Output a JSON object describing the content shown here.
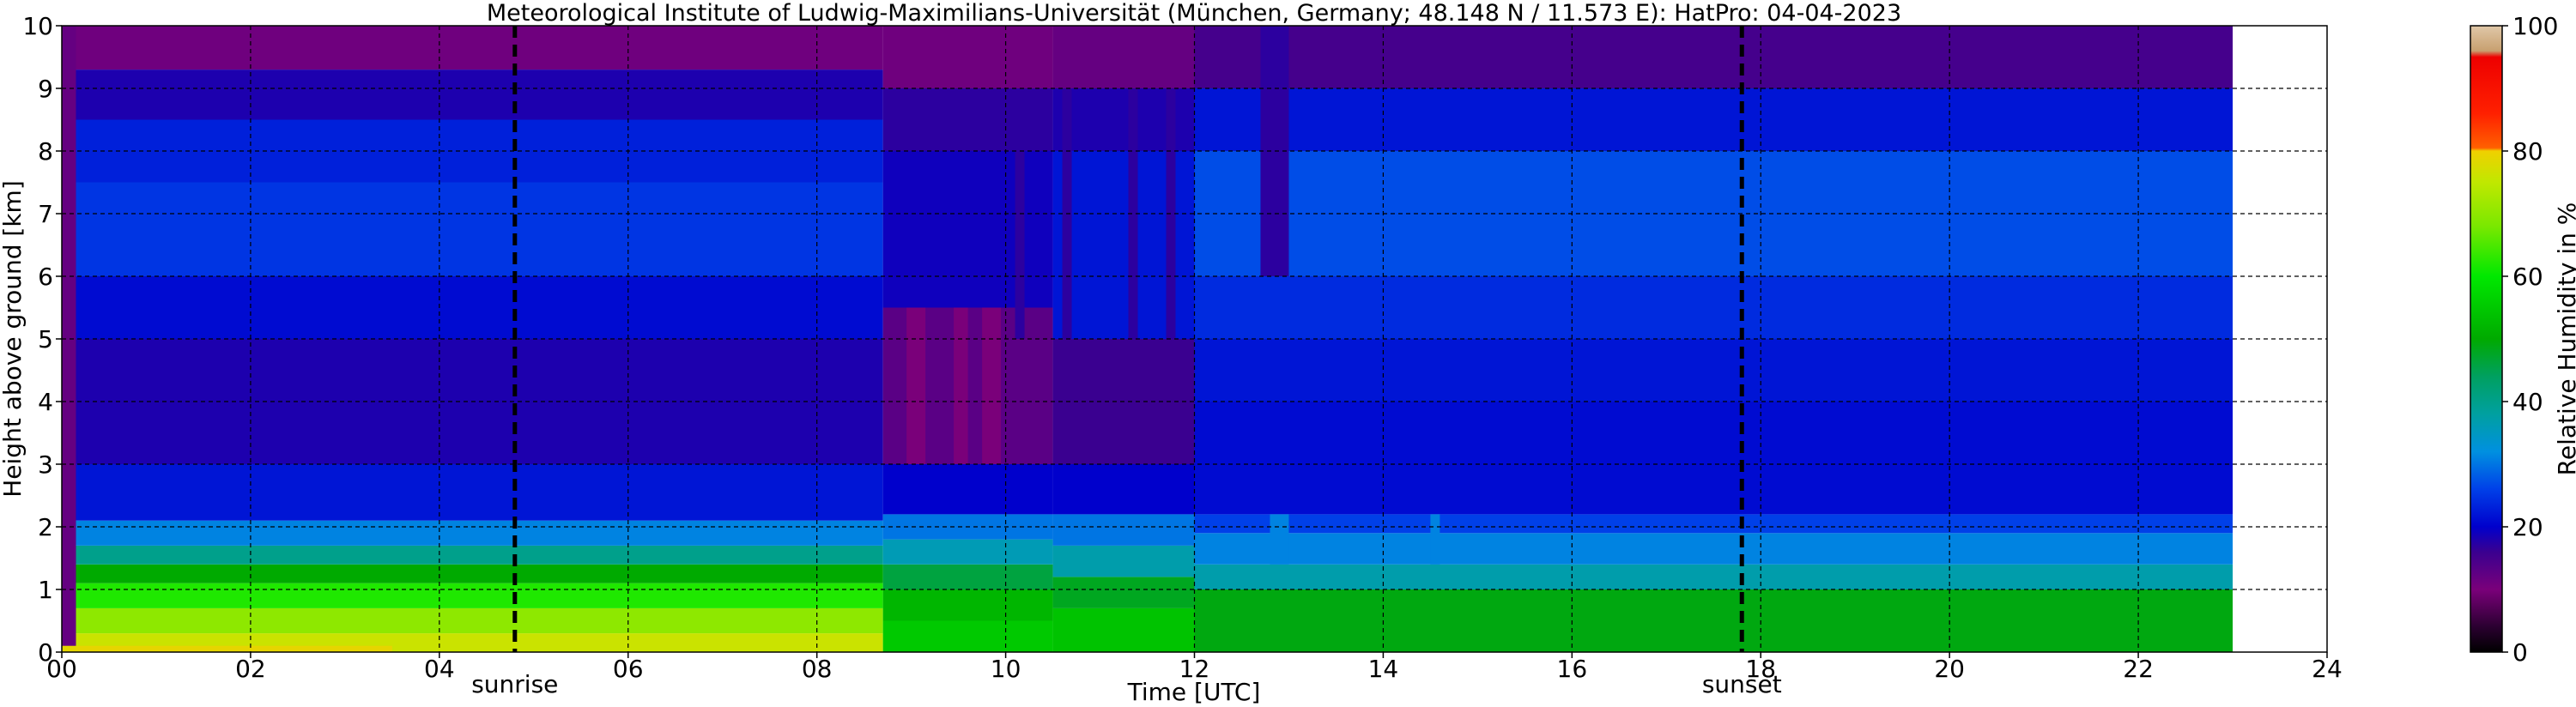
{
  "chart_data": {
    "type": "heatmap",
    "title": "Meteorological Institute of Ludwig-Maximilians-Universität (München, Germany; 48.148 N / 11.573 E):    HatPro: 04-04-2023",
    "xlabel": "Time [UTC]",
    "ylabel": "Height above ground [km]",
    "xlim": [
      0,
      24
    ],
    "ylim": [
      0,
      10
    ],
    "data_end_time": 23,
    "x_ticks": [
      "00",
      "02",
      "04",
      "06",
      "08",
      "10",
      "12",
      "14",
      "16",
      "18",
      "20",
      "22",
      "24"
    ],
    "y_ticks": [
      "0",
      "1",
      "2",
      "3",
      "4",
      "5",
      "6",
      "7",
      "8",
      "9",
      "10"
    ],
    "grid": true,
    "annotations": [
      {
        "label": "sunrise",
        "time": 4.8
      },
      {
        "label": "sunset",
        "time": 17.8
      }
    ],
    "colorbar": {
      "label": "Relative Humidity in %",
      "ticks": [
        "0",
        "20",
        "40",
        "60",
        "80",
        "100"
      ],
      "range": [
        0,
        100
      ],
      "stops": [
        {
          "value": 0,
          "color": "#000000"
        },
        {
          "value": 4,
          "color": "#2a0030"
        },
        {
          "value": 10,
          "color": "#7a007a"
        },
        {
          "value": 16,
          "color": "#3a0090"
        },
        {
          "value": 20,
          "color": "#0000cc"
        },
        {
          "value": 26,
          "color": "#0040e8"
        },
        {
          "value": 32,
          "color": "#0090e0"
        },
        {
          "value": 38,
          "color": "#00a0a0"
        },
        {
          "value": 44,
          "color": "#00a060"
        },
        {
          "value": 50,
          "color": "#00aa00"
        },
        {
          "value": 60,
          "color": "#00e800"
        },
        {
          "value": 68,
          "color": "#7ae800"
        },
        {
          "value": 75,
          "color": "#c0e800"
        },
        {
          "value": 80,
          "color": "#f0d000"
        },
        {
          "value": 80.5,
          "color": "#ff6000"
        },
        {
          "value": 86,
          "color": "#ff2000"
        },
        {
          "value": 95,
          "color": "#ee0000"
        },
        {
          "value": 96,
          "color": "#c8a070"
        },
        {
          "value": 100,
          "color": "#e0c8a8"
        }
      ]
    },
    "time_segments": [
      {
        "start": 0,
        "end": 8.7,
        "rows": [
          {
            "z0": 0,
            "z1": 0.3,
            "rh": 76
          },
          {
            "z0": 0.3,
            "z1": 0.7,
            "rh": 70
          },
          {
            "z0": 0.7,
            "z1": 1.1,
            "rh": 62
          },
          {
            "z0": 1.1,
            "z1": 1.4,
            "rh": 50
          },
          {
            "z0": 1.4,
            "z1": 1.7,
            "rh": 40
          },
          {
            "z0": 1.7,
            "z1": 2.1,
            "rh": 31
          },
          {
            "z0": 2.1,
            "z1": 3.0,
            "rh": 22
          },
          {
            "z0": 3.0,
            "z1": 5.0,
            "rh": 18
          },
          {
            "z0": 5.0,
            "z1": 6.0,
            "rh": 21
          },
          {
            "z0": 6.0,
            "z1": 7.5,
            "rh": 25
          },
          {
            "z0": 7.5,
            "z1": 8.5,
            "rh": 23
          },
          {
            "z0": 8.5,
            "z1": 9.3,
            "rh": 18
          },
          {
            "z0": 9.3,
            "z1": 10,
            "rh": 11
          }
        ]
      },
      {
        "start": 8.7,
        "end": 10.5,
        "rows": [
          {
            "z0": 0,
            "z1": 0.5,
            "rh": 55
          },
          {
            "z0": 0.5,
            "z1": 1.0,
            "rh": 52
          },
          {
            "z0": 1.0,
            "z1": 1.4,
            "rh": 46
          },
          {
            "z0": 1.4,
            "z1": 1.8,
            "rh": 36
          },
          {
            "z0": 1.8,
            "z1": 2.2,
            "rh": 30
          },
          {
            "z0": 2.2,
            "z1": 3.0,
            "rh": 20
          },
          {
            "z0": 3.0,
            "z1": 5.5,
            "rh": 13
          },
          {
            "z0": 5.5,
            "z1": 8.0,
            "rh": 19
          },
          {
            "z0": 8.0,
            "z1": 9.0,
            "rh": 17
          },
          {
            "z0": 9.0,
            "z1": 10,
            "rh": 11
          }
        ]
      },
      {
        "start": 10.5,
        "end": 12,
        "rows": [
          {
            "z0": 0,
            "z1": 0.7,
            "rh": 54
          },
          {
            "z0": 0.7,
            "z1": 1.2,
            "rh": 48
          },
          {
            "z0": 1.2,
            "z1": 1.7,
            "rh": 37
          },
          {
            "z0": 1.7,
            "z1": 2.2,
            "rh": 30
          },
          {
            "z0": 2.2,
            "z1": 3.0,
            "rh": 20
          },
          {
            "z0": 3.0,
            "z1": 5.0,
            "rh": 16
          },
          {
            "z0": 5.0,
            "z1": 8.0,
            "rh": 22
          },
          {
            "z0": 8.0,
            "z1": 9.0,
            "rh": 18
          },
          {
            "z0": 9.0,
            "z1": 10,
            "rh": 12
          }
        ]
      },
      {
        "start": 12,
        "end": 23,
        "rows": [
          {
            "z0": 0,
            "z1": 1.0,
            "rh": 49
          },
          {
            "z0": 1.0,
            "z1": 1.4,
            "rh": 37
          },
          {
            "z0": 1.4,
            "z1": 1.9,
            "rh": 31
          },
          {
            "z0": 1.9,
            "z1": 2.2,
            "rh": 26
          },
          {
            "z0": 2.2,
            "z1": 4.0,
            "rh": 21
          },
          {
            "z0": 4.0,
            "z1": 5.0,
            "rh": 22
          },
          {
            "z0": 5.0,
            "z1": 6.0,
            "rh": 24
          },
          {
            "z0": 6.0,
            "z1": 8.0,
            "rh": 27
          },
          {
            "z0": 8.0,
            "z1": 9.0,
            "rh": 22
          },
          {
            "z0": 9.0,
            "z1": 10,
            "rh": 15
          }
        ]
      }
    ],
    "features": [
      {
        "t0": 0,
        "t1": 0.15,
        "z0": 0,
        "z1": 10,
        "rh": 12
      },
      {
        "t0": 0,
        "t1": 3.5,
        "z0": 0,
        "z1": 0.1,
        "rh": 79
      },
      {
        "t0": 8.95,
        "t1": 9.15,
        "z0": 3.0,
        "z1": 5.5,
        "rh": 10
      },
      {
        "t0": 9.45,
        "t1": 9.6,
        "z0": 3.0,
        "z1": 5.5,
        "rh": 10
      },
      {
        "t0": 9.75,
        "t1": 9.95,
        "z0": 3.0,
        "z1": 5.5,
        "rh": 10
      },
      {
        "t0": 10.1,
        "t1": 10.2,
        "z0": 5.0,
        "z1": 9.0,
        "rh": 17
      },
      {
        "t0": 10.6,
        "t1": 10.7,
        "z0": 5.0,
        "z1": 9.0,
        "rh": 17
      },
      {
        "t0": 11.3,
        "t1": 11.4,
        "z0": 5.0,
        "z1": 9.0,
        "rh": 17
      },
      {
        "t0": 11.7,
        "t1": 11.8,
        "z0": 5.0,
        "z1": 9.0,
        "rh": 17
      },
      {
        "t0": 12.7,
        "t1": 13.0,
        "z0": 6.0,
        "z1": 10,
        "rh": 17
      },
      {
        "t0": 12.8,
        "t1": 13.0,
        "z0": 1.4,
        "z1": 2.2,
        "rh": 31
      },
      {
        "t0": 14.5,
        "t1": 14.6,
        "z0": 1.4,
        "z1": 2.2,
        "rh": 31
      }
    ]
  }
}
